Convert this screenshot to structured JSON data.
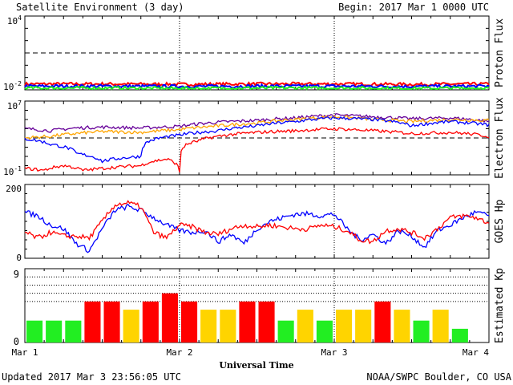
{
  "header": {
    "title": "Satellite Environment (3 day)",
    "begin": "Begin:  2017 Mar 1 0000 UTC"
  },
  "footer": {
    "updated": "Updated 2017 Mar  3 23:56:05 UTC",
    "source": "NOAA/SWPC Boulder, CO USA"
  },
  "x_axis": {
    "label": "Universal Time",
    "ticks": [
      "Mar 1",
      "Mar 2",
      "Mar 3",
      "Mar 4"
    ]
  },
  "colors": {
    "red": "#ff0000",
    "blue": "#0000ff",
    "green": "#22ee22",
    "orange": "#ffa500",
    "purple": "#660099",
    "yellow": "#ffd400"
  },
  "chart_data": [
    {
      "type": "line",
      "ylabel": "Proton Flux",
      "yscale": "log",
      "ylim": [
        0.01,
        10000
      ],
      "ytick_labels": [
        "10^4",
        "10^-2"
      ],
      "threshold": 10,
      "series": [
        {
          "color": "red",
          "x": [
            0,
            12,
            24,
            36,
            48,
            60,
            72
          ],
          "values": [
            0.03,
            0.03,
            0.028,
            0.03,
            0.03,
            0.028,
            0.03
          ]
        },
        {
          "color": "blue",
          "x": [
            0,
            12,
            24,
            36,
            48,
            60,
            72
          ],
          "values": [
            0.02,
            0.02,
            0.019,
            0.02,
            0.02,
            0.019,
            0.02
          ]
        },
        {
          "color": "green",
          "x": [
            0,
            12,
            24,
            36,
            48,
            60,
            72
          ],
          "values": [
            0.014,
            0.014,
            0.013,
            0.014,
            0.014,
            0.013,
            0.014
          ]
        }
      ]
    },
    {
      "type": "line",
      "ylabel": "Electron Flux",
      "yscale": "log",
      "ylim": [
        0.1,
        10000000
      ],
      "ytick_labels": [
        "10^7",
        "10^-1"
      ],
      "threshold": 1000,
      "series": [
        {
          "color": "purple",
          "x": [
            0,
            4,
            8,
            12,
            18,
            24,
            30,
            36,
            42,
            48,
            54,
            60,
            66,
            72
          ],
          "values": [
            10000,
            6000,
            12000,
            15000,
            12000,
            18000,
            50000,
            80000,
            150000,
            300000,
            200000,
            120000,
            150000,
            60000
          ]
        },
        {
          "color": "orange",
          "x": [
            0,
            4,
            8,
            12,
            18,
            24,
            30,
            36,
            42,
            48,
            54,
            60,
            66,
            72
          ],
          "values": [
            1000,
            1500,
            3000,
            5000,
            4000,
            8000,
            20000,
            40000,
            100000,
            200000,
            100000,
            60000,
            100000,
            80000
          ]
        },
        {
          "color": "blue",
          "x": [
            0,
            4,
            8,
            12,
            18,
            24,
            30,
            36,
            42,
            48,
            54,
            60,
            66,
            72
          ],
          "values": [
            800,
            200,
            20,
            3,
            10,
            2000,
            6000,
            20000,
            60000,
            150000,
            100000,
            20000,
            60000,
            25000
          ]
        },
        {
          "color": "red",
          "x": [
            0,
            3,
            6,
            9,
            12,
            18,
            22,
            24,
            27,
            30,
            36,
            42,
            48,
            54,
            60,
            66,
            72
          ],
          "values": [
            0.5,
            0.3,
            1,
            0.3,
            0.5,
            1,
            5,
            0.2,
            500,
            1500,
            4000,
            6000,
            10000,
            6000,
            3000,
            4000,
            1500
          ]
        }
      ]
    },
    {
      "type": "line",
      "ylabel": "GOES Hp",
      "ylim": [
        0,
        200
      ],
      "ytick_labels": [
        "200",
        "0"
      ],
      "series": [
        {
          "color": "blue",
          "x": [
            0,
            2,
            4,
            6,
            8,
            10,
            12,
            14,
            16,
            18,
            20,
            22,
            24,
            26,
            28,
            30,
            32,
            34,
            36,
            38,
            40,
            42,
            44,
            46,
            48,
            50,
            52,
            54,
            56,
            58,
            60,
            62,
            64,
            66,
            68,
            70,
            72
          ],
          "values": [
            125,
            115,
            90,
            80,
            40,
            20,
            80,
            130,
            140,
            130,
            110,
            90,
            75,
            70,
            75,
            45,
            65,
            40,
            80,
            100,
            110,
            120,
            120,
            115,
            120,
            80,
            50,
            65,
            40,
            75,
            60,
            30,
            75,
            90,
            110,
            125,
            115
          ]
        },
        {
          "color": "red",
          "x": [
            0,
            2,
            4,
            6,
            8,
            10,
            12,
            14,
            16,
            18,
            20,
            22,
            24,
            26,
            28,
            30,
            32,
            34,
            36,
            38,
            40,
            42,
            44,
            46,
            48,
            50,
            52,
            54,
            56,
            58,
            60,
            62,
            64,
            66,
            68,
            70,
            72
          ],
          "values": [
            70,
            55,
            70,
            60,
            60,
            55,
            100,
            145,
            150,
            140,
            70,
            55,
            90,
            85,
            70,
            65,
            80,
            90,
            85,
            90,
            85,
            80,
            80,
            90,
            85,
            75,
            50,
            45,
            75,
            80,
            70,
            55,
            80,
            110,
            115,
            110,
            95
          ]
        }
      ]
    },
    {
      "type": "bar",
      "ylabel": "Estimated Kp",
      "ylim": [
        0,
        9
      ],
      "ytick_labels": [
        "9",
        "0"
      ],
      "bar_hours": 3,
      "values": [
        2.67,
        2.67,
        2.67,
        5,
        5,
        4,
        5,
        6,
        5,
        4,
        4,
        5,
        5,
        2.67,
        4,
        2.67,
        4,
        4,
        5,
        4,
        2.67,
        4,
        1.67
      ],
      "bar_colors": [
        "green",
        "green",
        "green",
        "red",
        "red",
        "yellow",
        "red",
        "red",
        "red",
        "yellow",
        "yellow",
        "red",
        "red",
        "green",
        "yellow",
        "green",
        "yellow",
        "yellow",
        "red",
        "yellow",
        "green",
        "yellow",
        "green"
      ]
    }
  ]
}
